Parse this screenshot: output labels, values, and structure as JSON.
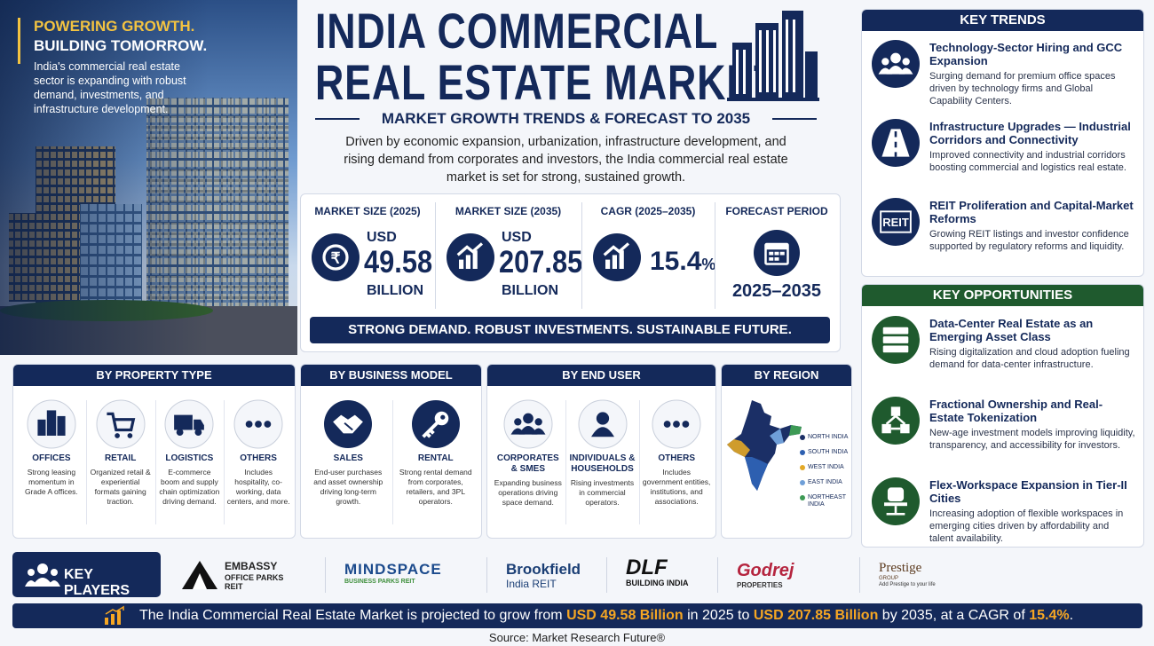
{
  "hero": {
    "tagline_1": "POWERING GROWTH.",
    "tagline_2": "BUILDING TOMORROW.",
    "text": "India's commercial real estate sector is expanding with robust demand, investments, and infrastructure development."
  },
  "header": {
    "title_1": "INDIA COMMERCIAL",
    "title_2": "REAL ESTATE MARKET",
    "subtitle": "MARKET GROWTH TRENDS & FORECAST TO 2035",
    "description": "Driven by economic expansion, urbanization, infrastructure development, and rising demand from corporates and investors, the India commercial real estate market is set for strong, sustained growth."
  },
  "stats": [
    {
      "label": "MARKET SIZE (2025)",
      "prefix": "USD",
      "value": "49.58",
      "unit": "BILLION"
    },
    {
      "label": "MARKET SIZE (2035)",
      "prefix": "USD",
      "value": "207.85",
      "unit": "BILLION"
    },
    {
      "label": "CAGR (2025–2035)",
      "value": "15.4",
      "unit": "%"
    },
    {
      "label": "FORECAST PERIOD",
      "value": "2025–2035"
    }
  ],
  "banner": "STRONG DEMAND. ROBUST INVESTMENTS. SUSTAINABLE FUTURE.",
  "key_trends": {
    "title": "KEY TRENDS",
    "items": [
      {
        "title": "Technology-Sector Hiring and GCC Expansion",
        "text": "Surging demand for premium office spaces driven by technology firms and Global Capability Centers."
      },
      {
        "title": "Infrastructure Upgrades — Industrial Corridors and Connectivity",
        "text": "Improved connectivity and industrial corridors boosting commercial and logistics real estate."
      },
      {
        "title": "REIT Proliferation and Capital-Market Reforms",
        "text": "Growing REIT listings and investor confidence supported by regulatory reforms and liquidity.",
        "icon_label": "REIT"
      }
    ]
  },
  "key_opportunities": {
    "title": "KEY OPPORTUNITIES",
    "items": [
      {
        "title": "Data-Center Real Estate as an Emerging Asset Class",
        "text": "Rising digitalization and cloud adoption fueling demand for data-center infrastructure."
      },
      {
        "title": "Fractional Ownership and Real-Estate Tokenization",
        "text": "New-age investment models improving liquidity, transparency, and accessibility for investors."
      },
      {
        "title": "Flex-Workspace Expansion in Tier-II Cities",
        "text": "Increasing adoption of flexible workspaces in emerging cities driven by affordability and talent availability."
      }
    ]
  },
  "segments": [
    {
      "title": "BY PROPERTY TYPE",
      "items": [
        {
          "name": "OFFICES",
          "text": "Strong leasing momentum in Grade A offices."
        },
        {
          "name": "RETAIL",
          "text": "Organized retail & experiential formats gaining traction."
        },
        {
          "name": "LOGISTICS",
          "text": "E-commerce boom and supply chain optimization driving demand."
        },
        {
          "name": "OTHERS",
          "text": "Includes hospitality, co-working, data centers, and more."
        }
      ]
    },
    {
      "title": "BY BUSINESS MODEL",
      "items": [
        {
          "name": "SALES",
          "text": "End-user purchases and asset ownership driving long-term growth."
        },
        {
          "name": "RENTAL",
          "text": "Strong rental demand from corporates, retailers, and 3PL operators."
        }
      ]
    },
    {
      "title": "BY END USER",
      "items": [
        {
          "name": "CORPORATES & SMES",
          "text": "Expanding business operations driving space demand."
        },
        {
          "name": "INDIVIDUALS & HOUSEHOLDS",
          "text": "Rising investments in commercial operators."
        },
        {
          "name": "OTHERS",
          "text": "Includes government entities, institutions, and associations."
        }
      ]
    }
  ],
  "region": {
    "title": "BY REGION",
    "legend": [
      {
        "name": "NORTH INDIA",
        "color": "#1b2f66"
      },
      {
        "name": "SOUTH INDIA",
        "color": "#2d5fb0"
      },
      {
        "name": "WEST INDIA",
        "color": "#e3a927"
      },
      {
        "name": "EAST INDIA",
        "color": "#6f9fd8"
      },
      {
        "name": "NORTHEAST INDIA",
        "color": "#3d9a55"
      }
    ]
  },
  "key_players": {
    "title": "KEY PLAYERS",
    "players": [
      {
        "lines": [
          "EMBASSY",
          "OFFICE PARKS",
          "REIT"
        ]
      },
      {
        "lines": [
          "MINDSPACE",
          "BUSINESS PARKS REIT"
        ]
      },
      {
        "lines": [
          "Brookfield",
          "India REIT"
        ]
      },
      {
        "lines": [
          "DLF",
          "BUILDING INDIA"
        ]
      },
      {
        "lines": [
          "Godrej",
          "PROPERTIES"
        ]
      },
      {
        "lines": [
          "Prestige",
          "GROUP",
          "Add Prestige to your life"
        ]
      }
    ]
  },
  "footer": {
    "segments": [
      {
        "text": "The India Commercial Real Estate Market is projected to grow from "
      },
      {
        "text": "USD 49.58 Billion",
        "highlight": true
      },
      {
        "text": " in 2025 to "
      },
      {
        "text": "USD 207.85 Billion",
        "highlight": true
      },
      {
        "text": " by 2035, at a CAGR of "
      },
      {
        "text": "15.4%",
        "highlight": true
      },
      {
        "text": "."
      }
    ]
  },
  "source": "Source: Market Research Future®"
}
